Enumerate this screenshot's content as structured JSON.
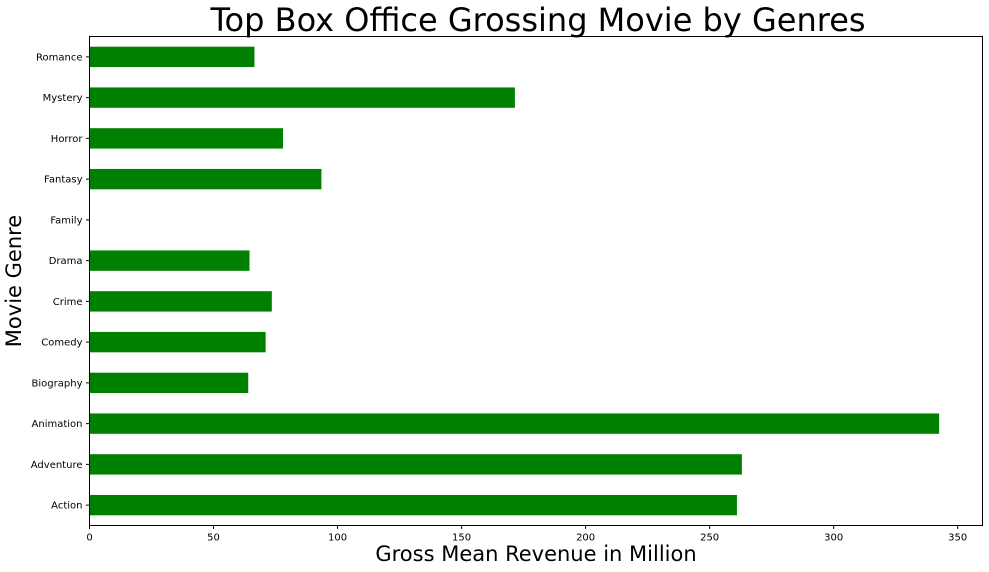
{
  "chart_data": {
    "type": "bar",
    "orientation": "horizontal",
    "title": "Top Box Office Grossing Movie by Genres",
    "xlabel": "Gross Mean Revenue in Million",
    "ylabel": "Movie Genre",
    "categories": [
      "Action",
      "Adventure",
      "Animation",
      "Biography",
      "Comedy",
      "Crime",
      "Drama",
      "Family",
      "Fantasy",
      "Horror",
      "Mystery",
      "Romance"
    ],
    "values": [
      261,
      263,
      342.5,
      64,
      71,
      73.5,
      64.5,
      0,
      93.5,
      78,
      171.5,
      66.5
    ],
    "xlim": [
      0,
      360
    ],
    "xticks": [
      0,
      50,
      100,
      150,
      200,
      250,
      300,
      350
    ],
    "bar_color": "#008000",
    "grid": false,
    "legend": "none"
  }
}
